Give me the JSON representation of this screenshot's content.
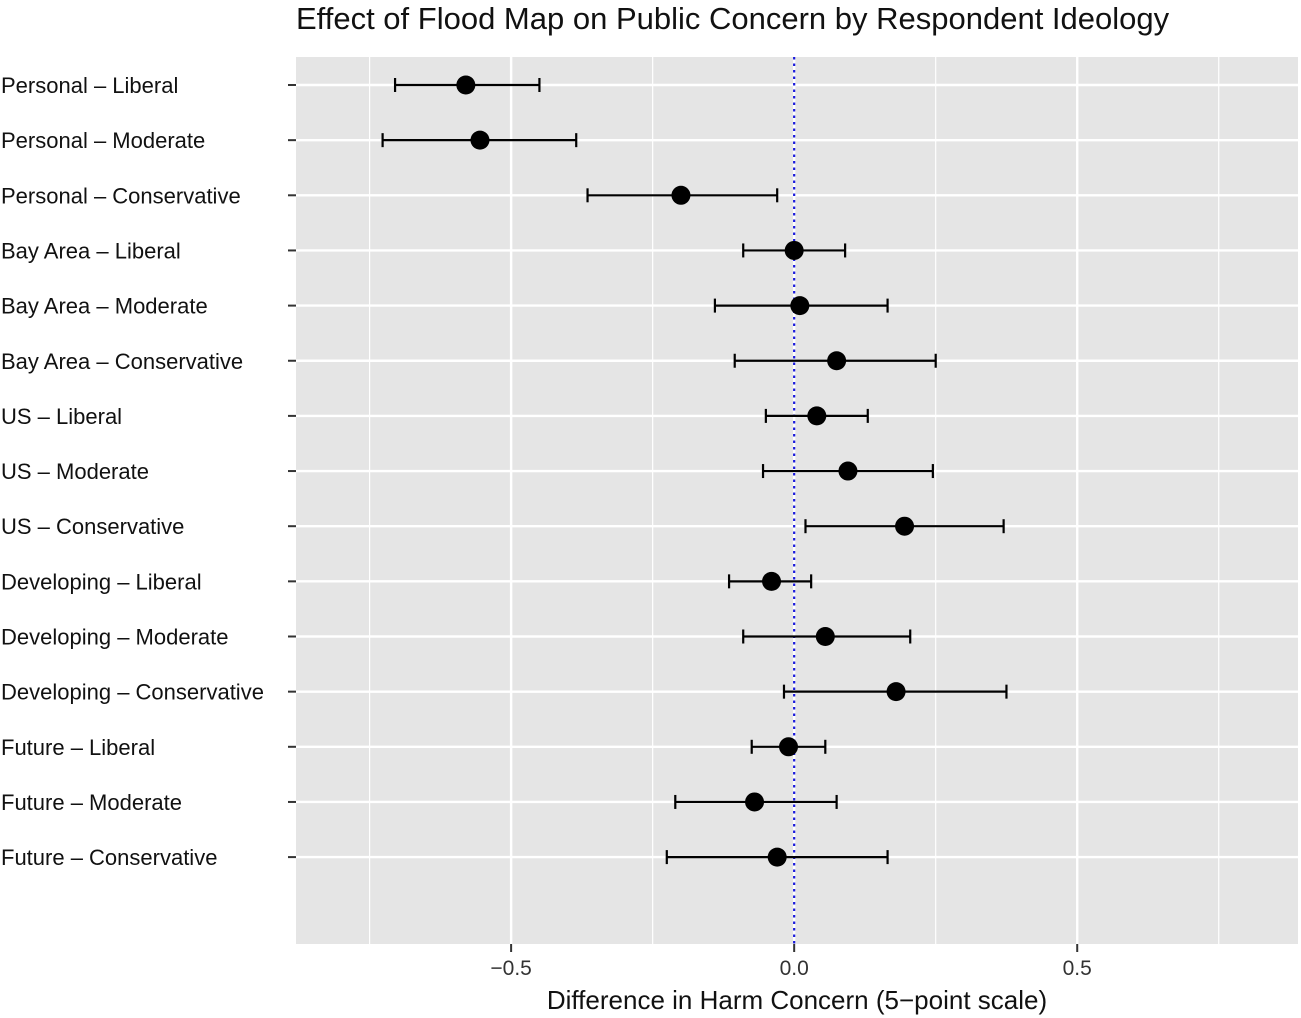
{
  "chart_data": {
    "type": "scatter",
    "subtype": "point-range (coefficient plot with horizontal error bars)",
    "title": "Effect of Flood Map on Public Concern by Respondent Ideology",
    "xlabel": "Difference in Harm Concern (5−point scale)",
    "ylabel": "",
    "xlim": [
      -0.88,
      0.89
    ],
    "x_ticks": [
      -0.5,
      0.0,
      0.5
    ],
    "x_tick_labels": [
      "−0.5",
      "0.0",
      "0.5"
    ],
    "reference_line": {
      "x": 0.0,
      "style": "dotted",
      "color": "#1a1adb"
    },
    "grid": true,
    "legend": "none",
    "colors": {
      "panel": "#e5e5e5",
      "grid": "#ffffff",
      "point": "#000000",
      "reference": "#1a1adb"
    },
    "categories": [
      "Personal – Liberal",
      "Personal – Moderate",
      "Personal – Conservative",
      "Bay Area – Liberal",
      "Bay Area – Moderate",
      "Bay Area – Conservative",
      "US – Liberal",
      "US – Moderate",
      "US – Conservative",
      "Developing – Liberal",
      "Developing – Moderate",
      "Developing – Conservative",
      "Future – Liberal",
      "Future – Moderate",
      "Future – Conservative"
    ],
    "estimates": [
      -0.58,
      -0.555,
      -0.2,
      0.0,
      0.01,
      0.075,
      0.04,
      0.095,
      0.195,
      -0.04,
      0.055,
      0.18,
      -0.01,
      -0.07,
      -0.03
    ],
    "ci_low": [
      -0.705,
      -0.727,
      -0.365,
      -0.09,
      -0.14,
      -0.105,
      -0.05,
      -0.055,
      0.02,
      -0.115,
      -0.09,
      -0.018,
      -0.075,
      -0.21,
      -0.225
    ],
    "ci_high": [
      -0.45,
      -0.385,
      -0.03,
      0.09,
      0.165,
      0.25,
      0.13,
      0.245,
      0.37,
      0.03,
      0.205,
      0.375,
      0.055,
      0.075,
      0.165
    ]
  }
}
